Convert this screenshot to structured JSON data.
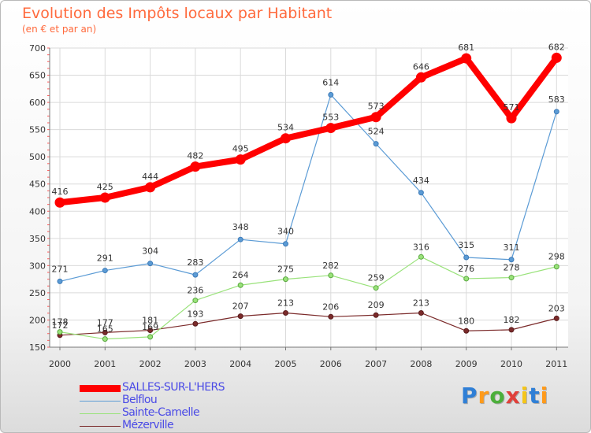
{
  "header": {
    "title": "Evolution des Impôts locaux par Habitant",
    "subtitle": "(en € et par an)"
  },
  "brand": {
    "name": "Proxiti"
  },
  "chart_data": {
    "type": "line",
    "title": "Evolution des Impôts locaux par Habitant",
    "ylabel": "(en € et par an)",
    "xlabel": "",
    "categories": [
      "2000",
      "2001",
      "2002",
      "2003",
      "2004",
      "2005",
      "2006",
      "2007",
      "2008",
      "2009",
      "2010",
      "2011"
    ],
    "ylim": [
      150,
      700
    ],
    "yticks": [
      150,
      200,
      250,
      300,
      350,
      400,
      450,
      500,
      550,
      600,
      650,
      700
    ],
    "grid": true,
    "legend_position": "bottom-left",
    "series": [
      {
        "name": "SALLES-SUR-L'HERS",
        "color": "#ff0000",
        "values": [
          416,
          425,
          444,
          482,
          495,
          534,
          553,
          573,
          646,
          681,
          571,
          682
        ]
      },
      {
        "name": "Belflou",
        "color": "#5b9bd5",
        "values": [
          271,
          291,
          304,
          283,
          348,
          340,
          614,
          524,
          434,
          315,
          311,
          583
        ]
      },
      {
        "name": "Sainte-Camelle",
        "color": "#99e27a",
        "values": [
          178,
          165,
          169,
          236,
          264,
          275,
          282,
          259,
          316,
          276,
          278,
          298
        ]
      },
      {
        "name": "Mézerville",
        "color": "#7b2a2a",
        "values": [
          172,
          177,
          181,
          193,
          207,
          213,
          206,
          209,
          213,
          180,
          182,
          203
        ]
      }
    ]
  }
}
